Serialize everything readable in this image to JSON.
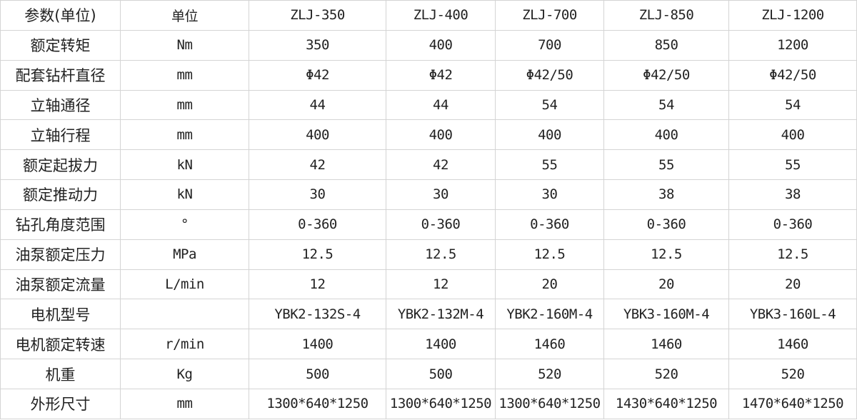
{
  "table": {
    "header": [
      "参数(单位)",
      "单位",
      "ZLJ-350",
      "ZLJ-400",
      "ZLJ-700",
      "ZLJ-850",
      "ZLJ-1200"
    ],
    "rows": [
      [
        "额定转矩",
        "Nm",
        "350",
        "400",
        "700",
        "850",
        "1200"
      ],
      [
        "配套钻杆直径",
        "mm",
        "Φ42",
        "Φ42",
        "Φ42/50",
        "Φ42/50",
        "Φ42/50"
      ],
      [
        "立轴通径",
        "mm",
        "44",
        "44",
        "54",
        "54",
        "54"
      ],
      [
        "立轴行程",
        "mm",
        "400",
        "400",
        "400",
        "400",
        "400"
      ],
      [
        "额定起拔力",
        "kN",
        "42",
        "42",
        "55",
        "55",
        "55"
      ],
      [
        "额定推动力",
        "kN",
        "30",
        "30",
        "30",
        "38",
        "38"
      ],
      [
        "钻孔角度范围",
        "°",
        "0-360",
        "0-360",
        "0-360",
        "0-360",
        "0-360"
      ],
      [
        "油泵额定压力",
        "MPa",
        "12.5",
        "12.5",
        "12.5",
        "12.5",
        "12.5"
      ],
      [
        "油泵额定流量",
        "L/min",
        "12",
        "12",
        "20",
        "20",
        "20"
      ],
      [
        "电机型号",
        null,
        "YBK2-132S-4",
        "YBK2-132M-4",
        "YBK2-160M-4",
        "YBK3-160M-4",
        "YBK3-160L-4"
      ],
      [
        "电机额定转速",
        "r/min",
        "1400",
        "1400",
        "1460",
        "1460",
        "1460"
      ],
      [
        "机重",
        "Kg",
        "500",
        "500",
        "520",
        "520",
        "520"
      ],
      [
        "外形尺寸",
        "mm",
        "1300*640*1250",
        "1300*640*1250",
        "1300*640*1250",
        "1430*640*1250",
        "1470*640*1250"
      ]
    ]
  }
}
